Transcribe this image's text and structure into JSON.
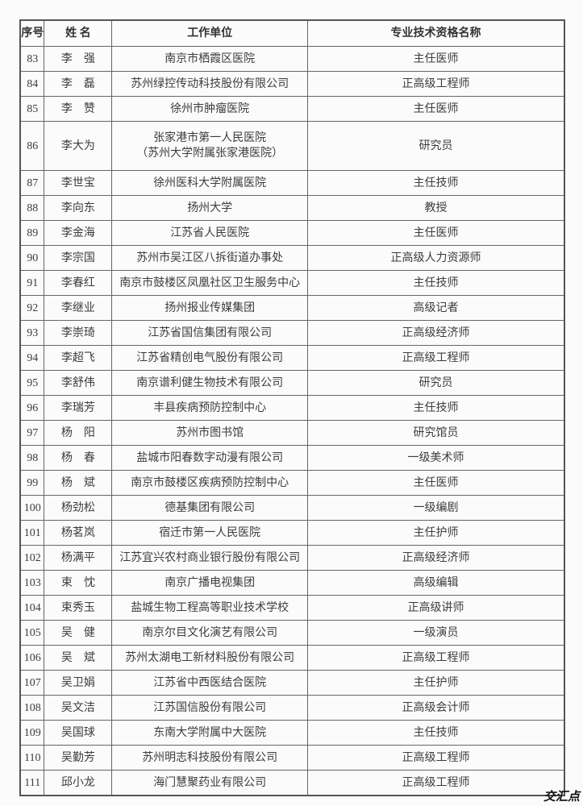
{
  "headers": [
    "序号",
    "姓 名",
    "工作单位",
    "专业技术资格名称"
  ],
  "rows": [
    {
      "no": "83",
      "name": "李　强",
      "unit": "南京市栖霞区医院",
      "title": "主任医师"
    },
    {
      "no": "84",
      "name": "李　磊",
      "unit": "苏州绿控传动科技股份有限公司",
      "title": "正高级工程师"
    },
    {
      "no": "85",
      "name": "李　赞",
      "unit": "徐州市肿瘤医院",
      "title": "主任医师"
    },
    {
      "no": "86",
      "name": "李大为",
      "unit": "张家港市第一人民医院",
      "unit2": "（苏州大学附属张家港医院）",
      "title": "研究员"
    },
    {
      "no": "87",
      "name": "李世宝",
      "unit": "徐州医科大学附属医院",
      "title": "主任技师"
    },
    {
      "no": "88",
      "name": "李向东",
      "unit": "扬州大学",
      "title": "教授"
    },
    {
      "no": "89",
      "name": "李金海",
      "unit": "江苏省人民医院",
      "title": "主任医师"
    },
    {
      "no": "90",
      "name": "李宗国",
      "unit": "苏州市吴江区八拆街道办事处",
      "title": "正高级人力资源师"
    },
    {
      "no": "91",
      "name": "李春红",
      "unit": "南京市鼓楼区凤凰社区卫生服务中心",
      "title": "主任技师"
    },
    {
      "no": "92",
      "name": "李继业",
      "unit": "扬州报业传媒集团",
      "title": "高级记者"
    },
    {
      "no": "93",
      "name": "李崇琦",
      "unit": "江苏省国信集团有限公司",
      "title": "正高级经济师"
    },
    {
      "no": "94",
      "name": "李超飞",
      "unit": "江苏省精创电气股份有限公司",
      "title": "正高级工程师"
    },
    {
      "no": "95",
      "name": "李舒伟",
      "unit": "南京谱利健生物技术有限公司",
      "title": "研究员"
    },
    {
      "no": "96",
      "name": "李瑞芳",
      "unit": "丰县疾病预防控制中心",
      "title": "主任技师"
    },
    {
      "no": "97",
      "name": "杨　阳",
      "unit": "苏州市图书馆",
      "title": "研究馆员"
    },
    {
      "no": "98",
      "name": "杨　春",
      "unit": "盐城市阳春数字动漫有限公司",
      "title": "一级美术师"
    },
    {
      "no": "99",
      "name": "杨　斌",
      "unit": "南京市鼓楼区疾病预防控制中心",
      "title": "主任医师"
    },
    {
      "no": "100",
      "name": "杨劲松",
      "unit": "德基集团有限公司",
      "title": "一级编剧"
    },
    {
      "no": "101",
      "name": "杨茗岚",
      "unit": "宿迁市第一人民医院",
      "title": "主任护师"
    },
    {
      "no": "102",
      "name": "杨满平",
      "unit": "江苏宜兴农村商业银行股份有限公司",
      "title": "正高级经济师"
    },
    {
      "no": "103",
      "name": "束　忱",
      "unit": "南京广播电视集团",
      "title": "高级编辑"
    },
    {
      "no": "104",
      "name": "束秀玉",
      "unit": "盐城生物工程高等职业技术学校",
      "title": "正高级讲师"
    },
    {
      "no": "105",
      "name": "吴　健",
      "unit": "南京尔目文化演艺有限公司",
      "title": "一级演员"
    },
    {
      "no": "106",
      "name": "吴　斌",
      "unit": "苏州太湖电工新材料股份有限公司",
      "title": "正高级工程师"
    },
    {
      "no": "107",
      "name": "吴卫娟",
      "unit": "江苏省中西医结合医院",
      "title": "主任护师"
    },
    {
      "no": "108",
      "name": "吴文洁",
      "unit": "江苏国信股份有限公司",
      "title": "正高级会计师"
    },
    {
      "no": "109",
      "name": "吴国球",
      "unit": "东南大学附属中大医院",
      "title": "主任技师"
    },
    {
      "no": "110",
      "name": "吴勤芳",
      "unit": "苏州明志科技股份有限公司",
      "title": "正高级工程师"
    },
    {
      "no": "111",
      "name": "邱小龙",
      "unit": "海门慧聚药业有限公司",
      "title": "正高级工程师"
    }
  ],
  "watermark": "交汇点"
}
